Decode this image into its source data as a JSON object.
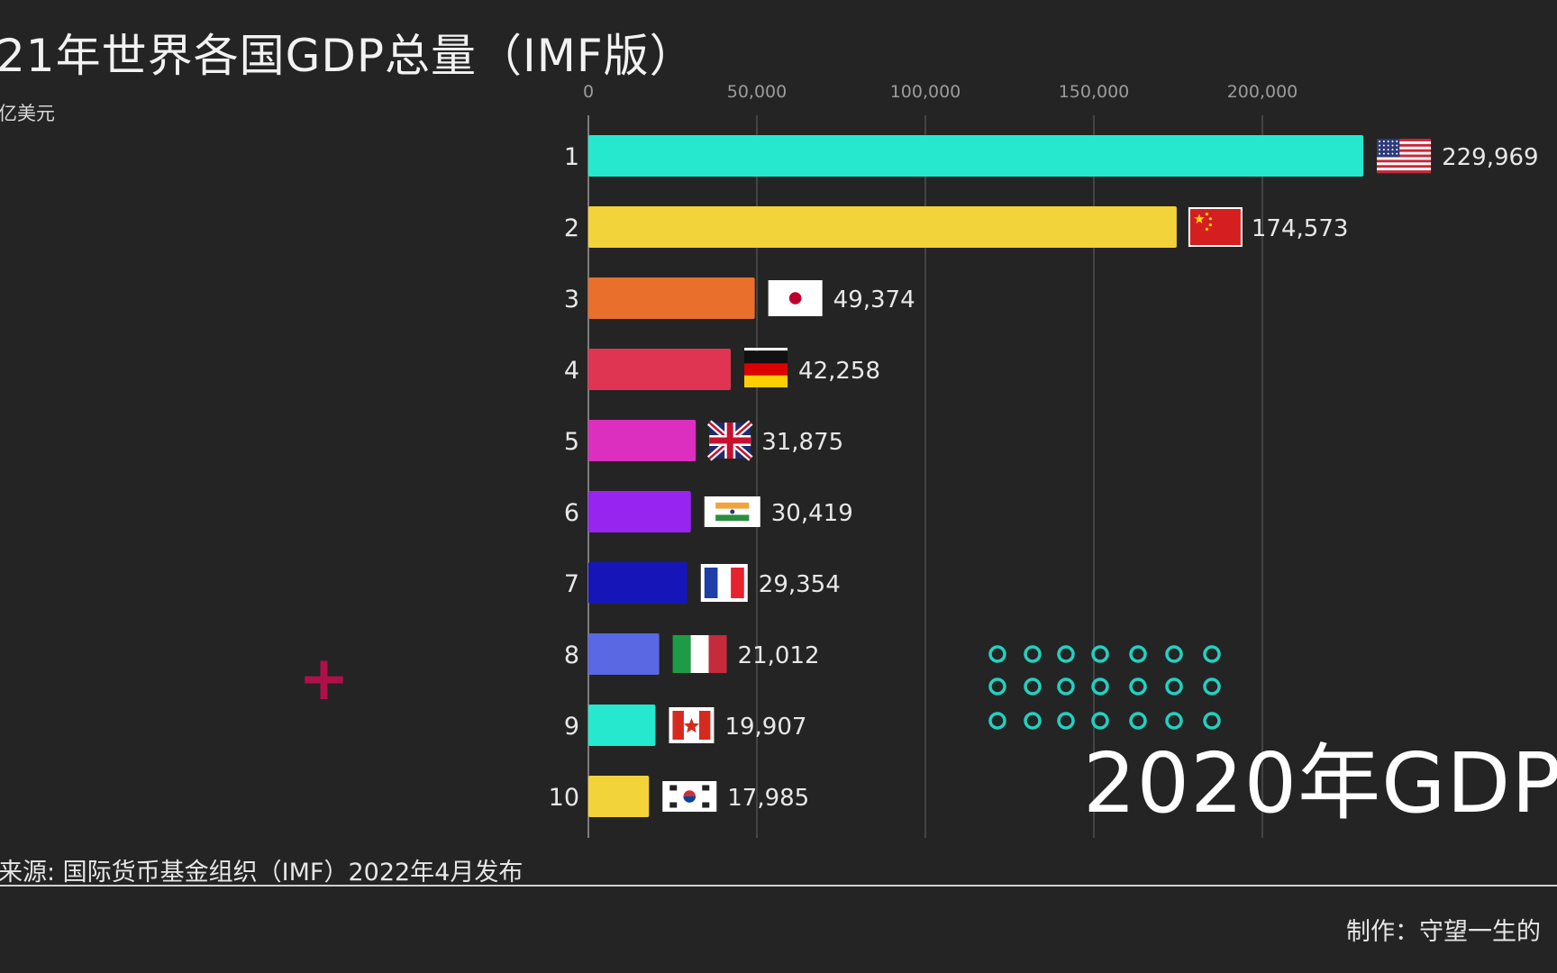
{
  "header": {
    "title": "21年世界各国GDP总量（IMF版）",
    "unit": "亿美元"
  },
  "footer": {
    "source": "来源: 国际货币基金组织（IMF）2022年4月发布",
    "credit": "制作：守望一生的"
  },
  "overlay": {
    "year_label": "2020年GDP",
    "plus_icon": "plus-icon",
    "dot_grid_color": "#22d1c0"
  },
  "chart_data": {
    "type": "bar",
    "orientation": "horizontal",
    "xlim": [
      0,
      230000
    ],
    "x_ticks": [
      0,
      50000,
      100000,
      150000,
      200000
    ],
    "x_tick_labels": [
      "0",
      "50,000",
      "100,000",
      "150,000",
      "200,000"
    ],
    "grid": true,
    "categories": [
      "1",
      "2",
      "3",
      "4",
      "5",
      "6",
      "7",
      "8",
      "9",
      "10"
    ],
    "values": [
      229969,
      174573,
      49374,
      42258,
      31875,
      30419,
      29354,
      21012,
      19907,
      17985
    ],
    "value_labels": [
      "229,969",
      "174,573",
      "49,374",
      "42,258",
      "31,875",
      "30,419",
      "29,354",
      "21,012",
      "19,907",
      "17,985"
    ],
    "colors": [
      "#25e8ce",
      "#f2d33a",
      "#e96f2c",
      "#e03552",
      "#dc2fbf",
      "#9824ef",
      "#1616b8",
      "#5a68e3",
      "#25e8ce",
      "#f2d33a"
    ],
    "flags": [
      "us-flag",
      "cn-flag",
      "jp-flag",
      "de-flag",
      "gb-flag",
      "in-flag",
      "fr-flag",
      "it-flag",
      "ca-flag",
      "kr-flag"
    ]
  }
}
